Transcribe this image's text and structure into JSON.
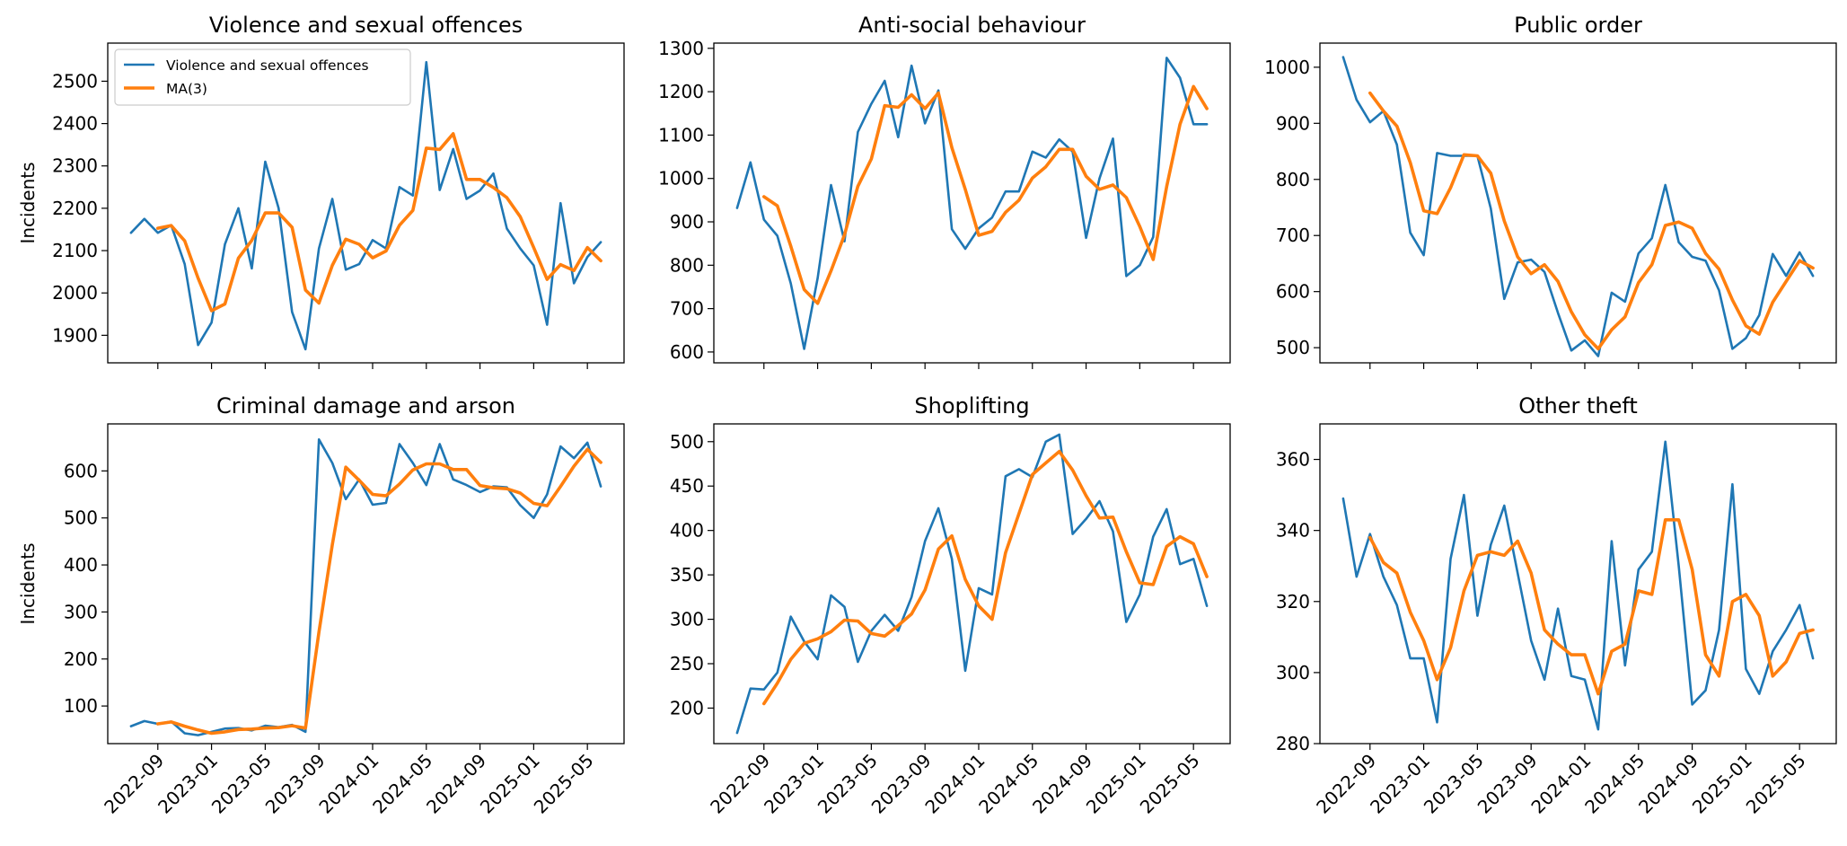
{
  "x_dates": [
    "2022-07",
    "2022-08",
    "2022-09",
    "2022-10",
    "2022-11",
    "2022-12",
    "2023-01",
    "2023-02",
    "2023-03",
    "2023-04",
    "2023-05",
    "2023-06",
    "2023-07",
    "2023-08",
    "2023-09",
    "2023-10",
    "2023-11",
    "2023-12",
    "2024-01",
    "2024-02",
    "2024-03",
    "2024-04",
    "2024-05",
    "2024-06",
    "2024-07",
    "2024-08",
    "2024-09",
    "2024-10",
    "2024-11",
    "2024-12",
    "2025-01",
    "2025-02",
    "2025-03",
    "2025-04",
    "2025-05",
    "2025-06"
  ],
  "x_tick_labels": [
    "2022-09",
    "2023-01",
    "2023-05",
    "2023-09",
    "2024-01",
    "2024-05",
    "2024-09",
    "2025-01",
    "2025-05"
  ],
  "colors": {
    "raw": "#1f77b4",
    "ma": "#ff7f0e"
  },
  "legend": {
    "raw_label": "Violence and sexual offences",
    "ma_label": "MA(3)",
    "placement": "upper-left"
  },
  "chart_data": [
    {
      "type": "line",
      "title": "Violence and sexual offences",
      "ylabel": "Incidents",
      "ylim": [
        1835,
        2590
      ],
      "yticks": [
        1900,
        2000,
        2100,
        2200,
        2300,
        2400,
        2500
      ],
      "series": [
        {
          "name": "Violence and sexual offences",
          "values": [
            2142,
            2175,
            2142,
            2160,
            2068,
            1877,
            1930,
            2115,
            2200,
            2058,
            2310,
            2200,
            1955,
            1867,
            2105,
            2222,
            2055,
            2068,
            2125,
            2105,
            2250,
            2230,
            2545,
            2243,
            2340,
            2222,
            2242,
            2282,
            2152,
            2105,
            2065,
            1925,
            2212,
            2023,
            2085,
            2120
          ]
        },
        {
          "name": "MA(3)",
          "values": [
            null,
            null,
            2153,
            2159,
            2123,
            2035,
            1958,
            1974,
            2082,
            2124,
            2189,
            2189,
            2155,
            2007,
            1976,
            2065,
            2127,
            2115,
            2083,
            2099,
            2160,
            2195,
            2342,
            2339,
            2376,
            2268,
            2268,
            2249,
            2225,
            2180,
            2107,
            2032,
            2067,
            2053,
            2107,
            2076
          ]
        }
      ]
    },
    {
      "type": "line",
      "title": "Anti-social behaviour",
      "ylabel": "",
      "ylim": [
        575,
        1312
      ],
      "yticks": [
        600,
        700,
        800,
        900,
        1000,
        1100,
        1200,
        1300
      ],
      "series": [
        {
          "name": "Anti-social behaviour",
          "values": [
            932,
            1037,
            905,
            868,
            758,
            607,
            770,
            985,
            855,
            1107,
            1172,
            1225,
            1095,
            1260,
            1127,
            1203,
            883,
            838,
            885,
            910,
            970,
            970,
            1062,
            1048,
            1090,
            1062,
            863,
            1000,
            1092,
            775,
            800,
            865,
            1278,
            1232,
            1125,
            1125
          ]
        },
        {
          "name": "MA(3)",
          "values": [
            null,
            null,
            958,
            937,
            844,
            744,
            712,
            787,
            870,
            982,
            1045,
            1168,
            1164,
            1193,
            1161,
            1197,
            1071,
            975,
            869,
            878,
            922,
            950,
            1001,
            1027,
            1067,
            1067,
            1005,
            975,
            985,
            956,
            889,
            813,
            981,
            1125,
            1212,
            1161
          ]
        }
      ]
    },
    {
      "type": "line",
      "title": "Public order",
      "ylabel": "",
      "ylim": [
        473,
        1043
      ],
      "yticks": [
        500,
        600,
        700,
        800,
        900,
        1000
      ],
      "series": [
        {
          "name": "Public order",
          "values": [
            1018,
            942,
            902,
            922,
            862,
            705,
            665,
            847,
            842,
            842,
            842,
            748,
            587,
            652,
            657,
            635,
            562,
            495,
            513,
            485,
            598,
            582,
            668,
            695,
            790,
            688,
            662,
            655,
            602,
            498,
            517,
            558,
            667,
            628,
            670,
            628
          ]
        },
        {
          "name": "MA(3)",
          "values": [
            null,
            null,
            954,
            922,
            895,
            830,
            744,
            739,
            785,
            844,
            842,
            811,
            726,
            662,
            632,
            648,
            618,
            564,
            523,
            498,
            532,
            555,
            616,
            648,
            718,
            724,
            713,
            668,
            640,
            585,
            539,
            524,
            581,
            618,
            655,
            642
          ]
        }
      ]
    },
    {
      "type": "line",
      "title": "Criminal damage and arson",
      "ylabel": "Incidents",
      "ylim": [
        20,
        700
      ],
      "yticks": [
        100,
        200,
        300,
        400,
        500,
        600
      ],
      "series": [
        {
          "name": "Criminal damage and arson",
          "values": [
            57,
            68,
            62,
            67,
            42,
            38,
            45,
            52,
            53,
            48,
            58,
            55,
            60,
            45,
            667,
            617,
            540,
            582,
            528,
            532,
            657,
            617,
            570,
            657,
            582,
            570,
            555,
            567,
            565,
            527,
            500,
            550,
            652,
            627,
            660,
            567
          ]
        },
        {
          "name": "MA(3)",
          "values": [
            null,
            null,
            62,
            66,
            57,
            49,
            42,
            45,
            50,
            51,
            53,
            54,
            58,
            53,
            257,
            443,
            608,
            580,
            550,
            547,
            572,
            602,
            615,
            615,
            603,
            603,
            569,
            564,
            562,
            553,
            531,
            526,
            567,
            610,
            646,
            618
          ]
        }
      ]
    },
    {
      "type": "line",
      "title": "Shoplifting",
      "ylabel": "",
      "ylim": [
        160,
        520
      ],
      "yticks": [
        200,
        250,
        300,
        350,
        400,
        450,
        500
      ],
      "series": [
        {
          "name": "Shoplifting",
          "values": [
            172,
            222,
            221,
            240,
            303,
            275,
            255,
            327,
            314,
            252,
            287,
            305,
            287,
            325,
            388,
            425,
            368,
            242,
            335,
            328,
            461,
            469,
            460,
            500,
            508,
            396,
            413,
            433,
            399,
            297,
            328,
            393,
            424,
            362,
            368,
            315
          ]
        },
        {
          "name": "MA(3)",
          "values": [
            null,
            null,
            205,
            228,
            255,
            273,
            278,
            286,
            299,
            298,
            284,
            281,
            293,
            306,
            333,
            379,
            394,
            345,
            315,
            300,
            375,
            419,
            463,
            476,
            489,
            468,
            439,
            414,
            415,
            376,
            341,
            339,
            382,
            393,
            385,
            348
          ]
        }
      ]
    },
    {
      "type": "line",
      "title": "Other theft",
      "ylabel": "",
      "ylim": [
        280,
        370
      ],
      "yticks": [
        280,
        300,
        320,
        340,
        360
      ],
      "series": [
        {
          "name": "Other theft",
          "values": [
            349,
            327,
            339,
            327,
            319,
            304,
            304,
            286,
            332,
            350,
            316,
            336,
            347,
            328,
            309,
            298,
            318,
            299,
            298,
            284,
            337,
            302,
            329,
            334,
            365,
            330,
            291,
            295,
            312,
            353,
            301,
            294,
            306,
            312,
            319,
            304
          ]
        },
        {
          "name": "MA(3)",
          "values": [
            null,
            null,
            338,
            331,
            328,
            317,
            309,
            298,
            307,
            323,
            333,
            334,
            333,
            337,
            328,
            312,
            308,
            305,
            305,
            294,
            306,
            308,
            323,
            322,
            343,
            343,
            329,
            305,
            299,
            320,
            322,
            316,
            299,
            303,
            311,
            312
          ]
        }
      ]
    }
  ]
}
